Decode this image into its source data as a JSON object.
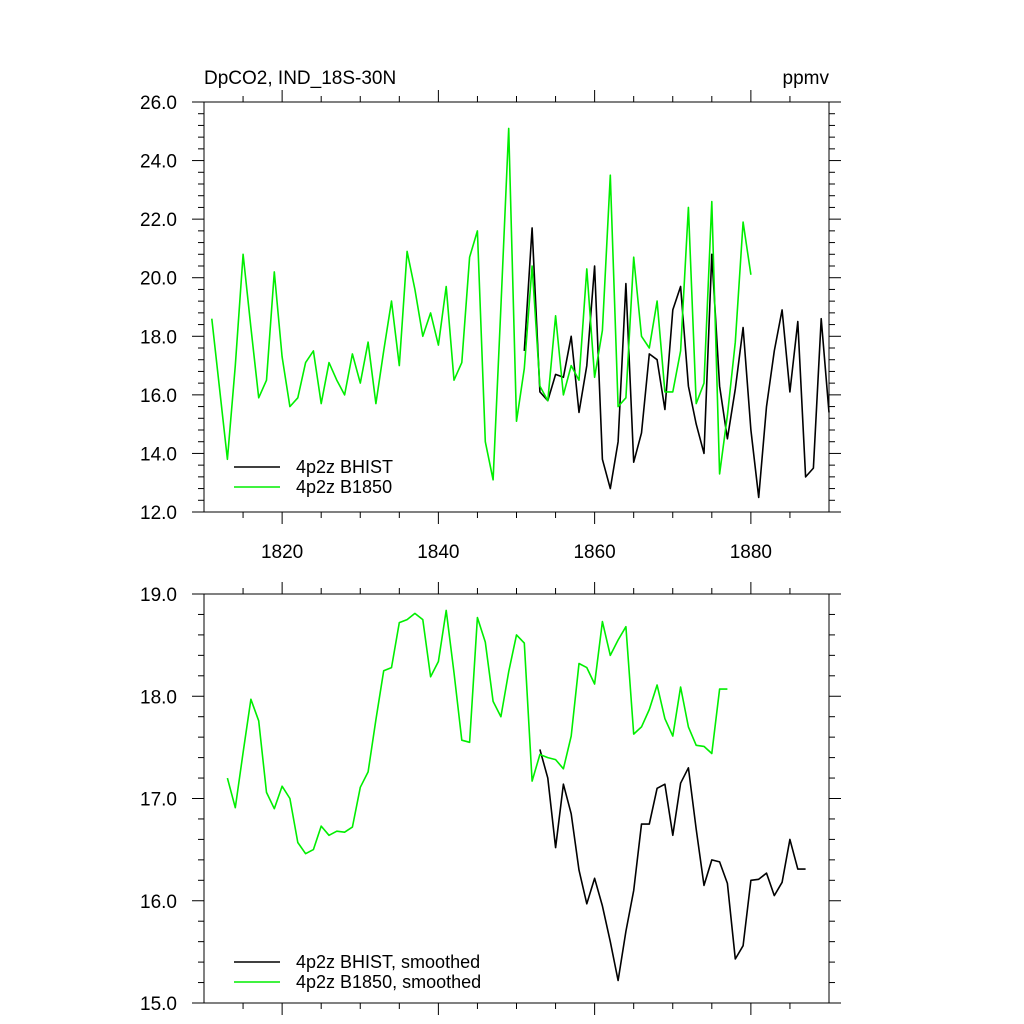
{
  "chart_data": [
    {
      "type": "line",
      "title": "DpCO2, IND_18S-30N",
      "units": "ppmv",
      "xlim": [
        1810,
        1890
      ],
      "ylim": [
        12,
        26
      ],
      "x_ticks": [
        1820,
        1840,
        1860,
        1880
      ],
      "y_ticks": [
        12,
        14,
        16,
        18,
        20,
        22,
        24,
        26
      ],
      "y_tick_labels": [
        "12.0",
        "14.0",
        "16.0",
        "18.0",
        "20.0",
        "22.0",
        "24.0",
        "26.0"
      ],
      "legend_position": "bottom-left",
      "series": [
        {
          "name": "4p2z BHIST",
          "color": "#000000",
          "x": [
            1851,
            1852,
            1853,
            1854,
            1855,
            1856,
            1857,
            1858,
            1859,
            1860,
            1861,
            1862,
            1863,
            1864,
            1865,
            1866,
            1867,
            1868,
            1869,
            1870,
            1871,
            1872,
            1873,
            1874,
            1875,
            1876,
            1877,
            1878,
            1879,
            1880,
            1881,
            1882,
            1883,
            1884,
            1885,
            1886,
            1887,
            1888,
            1889,
            1890
          ],
          "values": [
            17.5,
            21.7,
            16.1,
            15.8,
            16.7,
            16.6,
            18.0,
            15.4,
            17.0,
            20.4,
            13.8,
            12.8,
            14.4,
            19.8,
            13.7,
            14.7,
            17.4,
            17.2,
            15.5,
            18.9,
            19.7,
            16.3,
            15.0,
            14.0,
            20.8,
            16.3,
            14.5,
            16.2,
            18.3,
            14.8,
            12.5,
            15.6,
            17.5,
            18.9,
            16.1,
            18.5,
            13.2,
            13.5,
            18.6,
            15.4
          ]
        },
        {
          "name": "4p2z B1850",
          "color": "#00ee00",
          "x": [
            1811,
            1812,
            1813,
            1814,
            1815,
            1816,
            1817,
            1818,
            1819,
            1820,
            1821,
            1822,
            1823,
            1824,
            1825,
            1826,
            1827,
            1828,
            1829,
            1830,
            1831,
            1832,
            1833,
            1834,
            1835,
            1836,
            1837,
            1838,
            1839,
            1840,
            1841,
            1842,
            1843,
            1844,
            1845,
            1846,
            1847,
            1848,
            1849,
            1850,
            1851,
            1852,
            1853,
            1854,
            1855,
            1856,
            1857,
            1858,
            1859,
            1860,
            1861,
            1862,
            1863,
            1864,
            1865,
            1866,
            1867,
            1868,
            1869,
            1870,
            1871,
            1872,
            1873,
            1874,
            1875,
            1876,
            1877,
            1878,
            1879,
            1880
          ],
          "values": [
            18.6,
            16.2,
            13.8,
            17.0,
            20.8,
            18.3,
            15.9,
            16.5,
            20.2,
            17.3,
            15.6,
            15.9,
            17.1,
            17.5,
            15.7,
            17.1,
            16.5,
            16.0,
            17.4,
            16.4,
            17.8,
            15.7,
            17.5,
            19.2,
            17.0,
            20.9,
            19.6,
            18.0,
            18.8,
            17.7,
            19.7,
            16.5,
            17.1,
            20.7,
            21.6,
            14.4,
            13.1,
            19.0,
            25.1,
            15.1,
            16.9,
            20.4,
            16.3,
            15.8,
            18.7,
            16.0,
            17.0,
            16.5,
            20.3,
            16.6,
            18.2,
            23.5,
            15.6,
            15.9,
            20.7,
            18.0,
            17.6,
            19.2,
            16.1,
            16.1,
            17.5,
            22.4,
            15.7,
            16.4,
            22.6,
            13.3,
            15.3,
            17.8,
            21.9,
            20.1
          ]
        }
      ]
    },
    {
      "type": "line",
      "xlim": [
        1810,
        1890
      ],
      "ylim": [
        15,
        19
      ],
      "x_ticks": [
        1820,
        1840,
        1860,
        1880
      ],
      "y_ticks": [
        15,
        16,
        17,
        18,
        19
      ],
      "y_tick_labels": [
        "15.0",
        "16.0",
        "17.0",
        "18.0",
        "19.0"
      ],
      "legend_position": "bottom-left",
      "series": [
        {
          "name": "4p2z BHIST, smoothed",
          "color": "#000000",
          "x": [
            1853,
            1854,
            1855,
            1856,
            1857,
            1858,
            1859,
            1860,
            1861,
            1862,
            1863,
            1864,
            1865,
            1866,
            1867,
            1868,
            1869,
            1870,
            1871,
            1872,
            1873,
            1874,
            1875,
            1876,
            1877,
            1878,
            1879,
            1880,
            1881,
            1882,
            1883,
            1884,
            1885,
            1886,
            1887
          ],
          "values": [
            17.48,
            17.2,
            16.52,
            17.14,
            16.85,
            16.3,
            15.97,
            16.22,
            15.95,
            15.6,
            15.22,
            15.7,
            16.1,
            16.75,
            16.75,
            17.1,
            17.14,
            16.64,
            17.15,
            17.3,
            16.7,
            16.15,
            16.4,
            16.38,
            16.17,
            15.43,
            15.56,
            16.2,
            16.21,
            16.27,
            16.05,
            16.18,
            16.6,
            16.31,
            16.31
          ]
        },
        {
          "name": "4p2z B1850, smoothed",
          "color": "#00ee00",
          "x": [
            1813,
            1814,
            1815,
            1816,
            1817,
            1818,
            1819,
            1820,
            1821,
            1822,
            1823,
            1824,
            1825,
            1826,
            1827,
            1828,
            1829,
            1830,
            1831,
            1832,
            1833,
            1834,
            1835,
            1836,
            1837,
            1838,
            1839,
            1840,
            1841,
            1842,
            1843,
            1844,
            1845,
            1846,
            1847,
            1848,
            1849,
            1850,
            1851,
            1852,
            1853,
            1854,
            1855,
            1856,
            1857,
            1858,
            1859,
            1860,
            1861,
            1862,
            1863,
            1864,
            1865,
            1866,
            1867,
            1868,
            1869,
            1870,
            1871,
            1872,
            1873,
            1874,
            1875,
            1876,
            1877
          ],
          "values": [
            17.2,
            16.91,
            17.45,
            17.97,
            17.76,
            17.06,
            16.9,
            17.12,
            17.0,
            16.57,
            16.46,
            16.5,
            16.73,
            16.64,
            16.68,
            16.67,
            16.72,
            17.11,
            17.26,
            17.77,
            18.25,
            18.28,
            18.72,
            18.75,
            18.81,
            18.75,
            18.19,
            18.34,
            18.84,
            18.23,
            17.57,
            17.55,
            18.77,
            18.53,
            17.95,
            17.8,
            18.24,
            18.6,
            18.52,
            17.17,
            17.43,
            17.4,
            17.38,
            17.29,
            17.61,
            18.32,
            18.28,
            18.12,
            18.73,
            18.4,
            18.55,
            18.68,
            17.63,
            17.7,
            17.87,
            18.11,
            17.78,
            17.61,
            18.09,
            17.7,
            17.52,
            17.51,
            17.44,
            18.07,
            18.07
          ]
        }
      ]
    }
  ]
}
